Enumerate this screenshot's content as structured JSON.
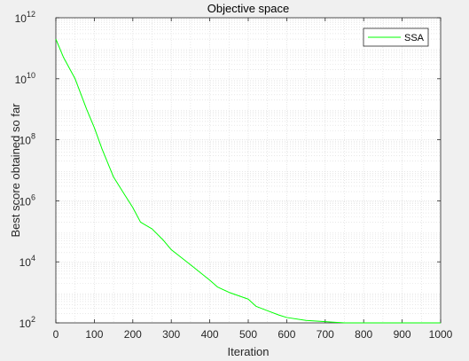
{
  "chart_data": {
    "type": "line",
    "title": "Objective space",
    "xlabel": "Iteration",
    "ylabel": "Best score obtained so far",
    "yscale": "log",
    "xlim": [
      0,
      1000
    ],
    "ylim": [
      100,
      1000000000000
    ],
    "grid": true,
    "minor_grid": true,
    "legend_position": "top-right",
    "x_ticks": [
      "0",
      "100",
      "200",
      "300",
      "400",
      "500",
      "600",
      "700",
      "800",
      "900",
      "1000"
    ],
    "y_ticks": [
      {
        "base": "10",
        "exp": "2"
      },
      {
        "base": "10",
        "exp": "4"
      },
      {
        "base": "10",
        "exp": "6"
      },
      {
        "base": "10",
        "exp": "8"
      },
      {
        "base": "10",
        "exp": "10"
      },
      {
        "base": "10",
        "exp": "12"
      }
    ],
    "series": [
      {
        "name": "SSA",
        "color": "#00ff00",
        "x": [
          0,
          20,
          50,
          80,
          100,
          120,
          150,
          180,
          200,
          220,
          250,
          280,
          300,
          350,
          400,
          420,
          450,
          500,
          520,
          550,
          580,
          600,
          650,
          700,
          750,
          800,
          850,
          900,
          950,
          1000
        ],
        "y": [
          200000000000.0,
          50000000000.0,
          10000000000.0,
          1000000000.0,
          250000000.0,
          50000000.0,
          6000000.0,
          1500000.0,
          600000.0,
          200000.0,
          120000.0,
          50000.0,
          25000.0,
          8000.0,
          2500.0,
          1500.0,
          1000.0,
          600.0,
          350.0,
          250.0,
          180.0,
          150.0,
          120.0,
          110.0,
          100.0,
          100.0,
          100.0,
          100.0,
          100.0,
          100.0
        ]
      }
    ]
  },
  "colors": {
    "figure_bg": "#f0f0f0",
    "axes_bg": "#ffffff",
    "grid": "#d9d9d9",
    "axis": "#262626"
  }
}
